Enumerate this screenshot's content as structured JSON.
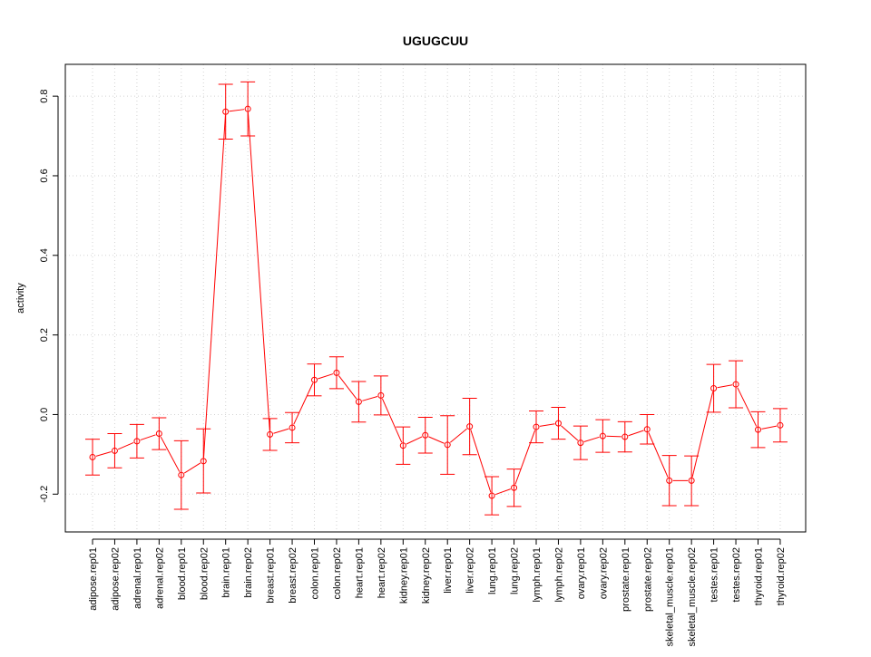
{
  "chart_data": {
    "type": "line",
    "title": "UGUGCUU",
    "xlabel": "",
    "ylabel": "activity",
    "ylim": [
      -0.295,
      0.88
    ],
    "yticks": [
      -0.2,
      0.0,
      0.2,
      0.4,
      0.6,
      0.8
    ],
    "ytick_labels": [
      "-0.2",
      "0.0",
      "0.2",
      "0.4",
      "0.6",
      "0.8"
    ],
    "grid": true,
    "series_color": "#ff0000",
    "grid_color": "#d3d3d3",
    "categories": [
      "adipose.rep01",
      "adipose.rep02",
      "adrenal.rep01",
      "adrenal.rep02",
      "blood.rep01",
      "blood.rep02",
      "brain.rep01",
      "brain.rep02",
      "breast.rep01",
      "breast.rep02",
      "colon.rep01",
      "colon.rep02",
      "heart.rep01",
      "heart.rep02",
      "kidney.rep01",
      "kidney.rep02",
      "liver.rep01",
      "liver.rep02",
      "lung.rep01",
      "lung.rep02",
      "lymph.rep01",
      "lymph.rep02",
      "ovary.rep01",
      "ovary.rep02",
      "prostate.rep01",
      "prostate.rep02",
      "skeletal_muscle.rep01",
      "skeletal_muscle.rep02",
      "testes.rep01",
      "testes.rep02",
      "thyroid.rep01",
      "thyroid.rep02"
    ],
    "values": [
      -0.107,
      -0.091,
      -0.067,
      -0.048,
      -0.152,
      -0.117,
      0.761,
      0.768,
      -0.05,
      -0.033,
      0.087,
      0.105,
      0.032,
      0.048,
      -0.078,
      -0.052,
      -0.076,
      -0.03,
      -0.204,
      -0.184,
      -0.031,
      -0.022,
      -0.071,
      -0.054,
      -0.056,
      -0.037,
      -0.166,
      -0.166,
      0.066,
      0.076,
      -0.038,
      -0.027
    ],
    "lower": [
      -0.152,
      -0.134,
      -0.109,
      -0.088,
      -0.238,
      -0.197,
      0.692,
      0.7,
      -0.09,
      -0.071,
      0.047,
      0.065,
      -0.019,
      -0.001,
      -0.125,
      -0.097,
      -0.15,
      -0.101,
      -0.252,
      -0.231,
      -0.071,
      -0.062,
      -0.113,
      -0.095,
      -0.094,
      -0.074,
      -0.229,
      -0.229,
      0.006,
      0.017,
      -0.083,
      -0.069
    ],
    "upper": [
      -0.062,
      -0.048,
      -0.025,
      -0.008,
      -0.066,
      -0.036,
      0.83,
      0.836,
      -0.01,
      0.005,
      0.127,
      0.145,
      0.083,
      0.097,
      -0.031,
      -0.007,
      -0.003,
      0.041,
      -0.156,
      -0.137,
      0.009,
      0.018,
      -0.029,
      -0.013,
      -0.018,
      -0.0,
      -0.103,
      -0.104,
      0.126,
      0.135,
      0.007,
      0.015
    ]
  }
}
